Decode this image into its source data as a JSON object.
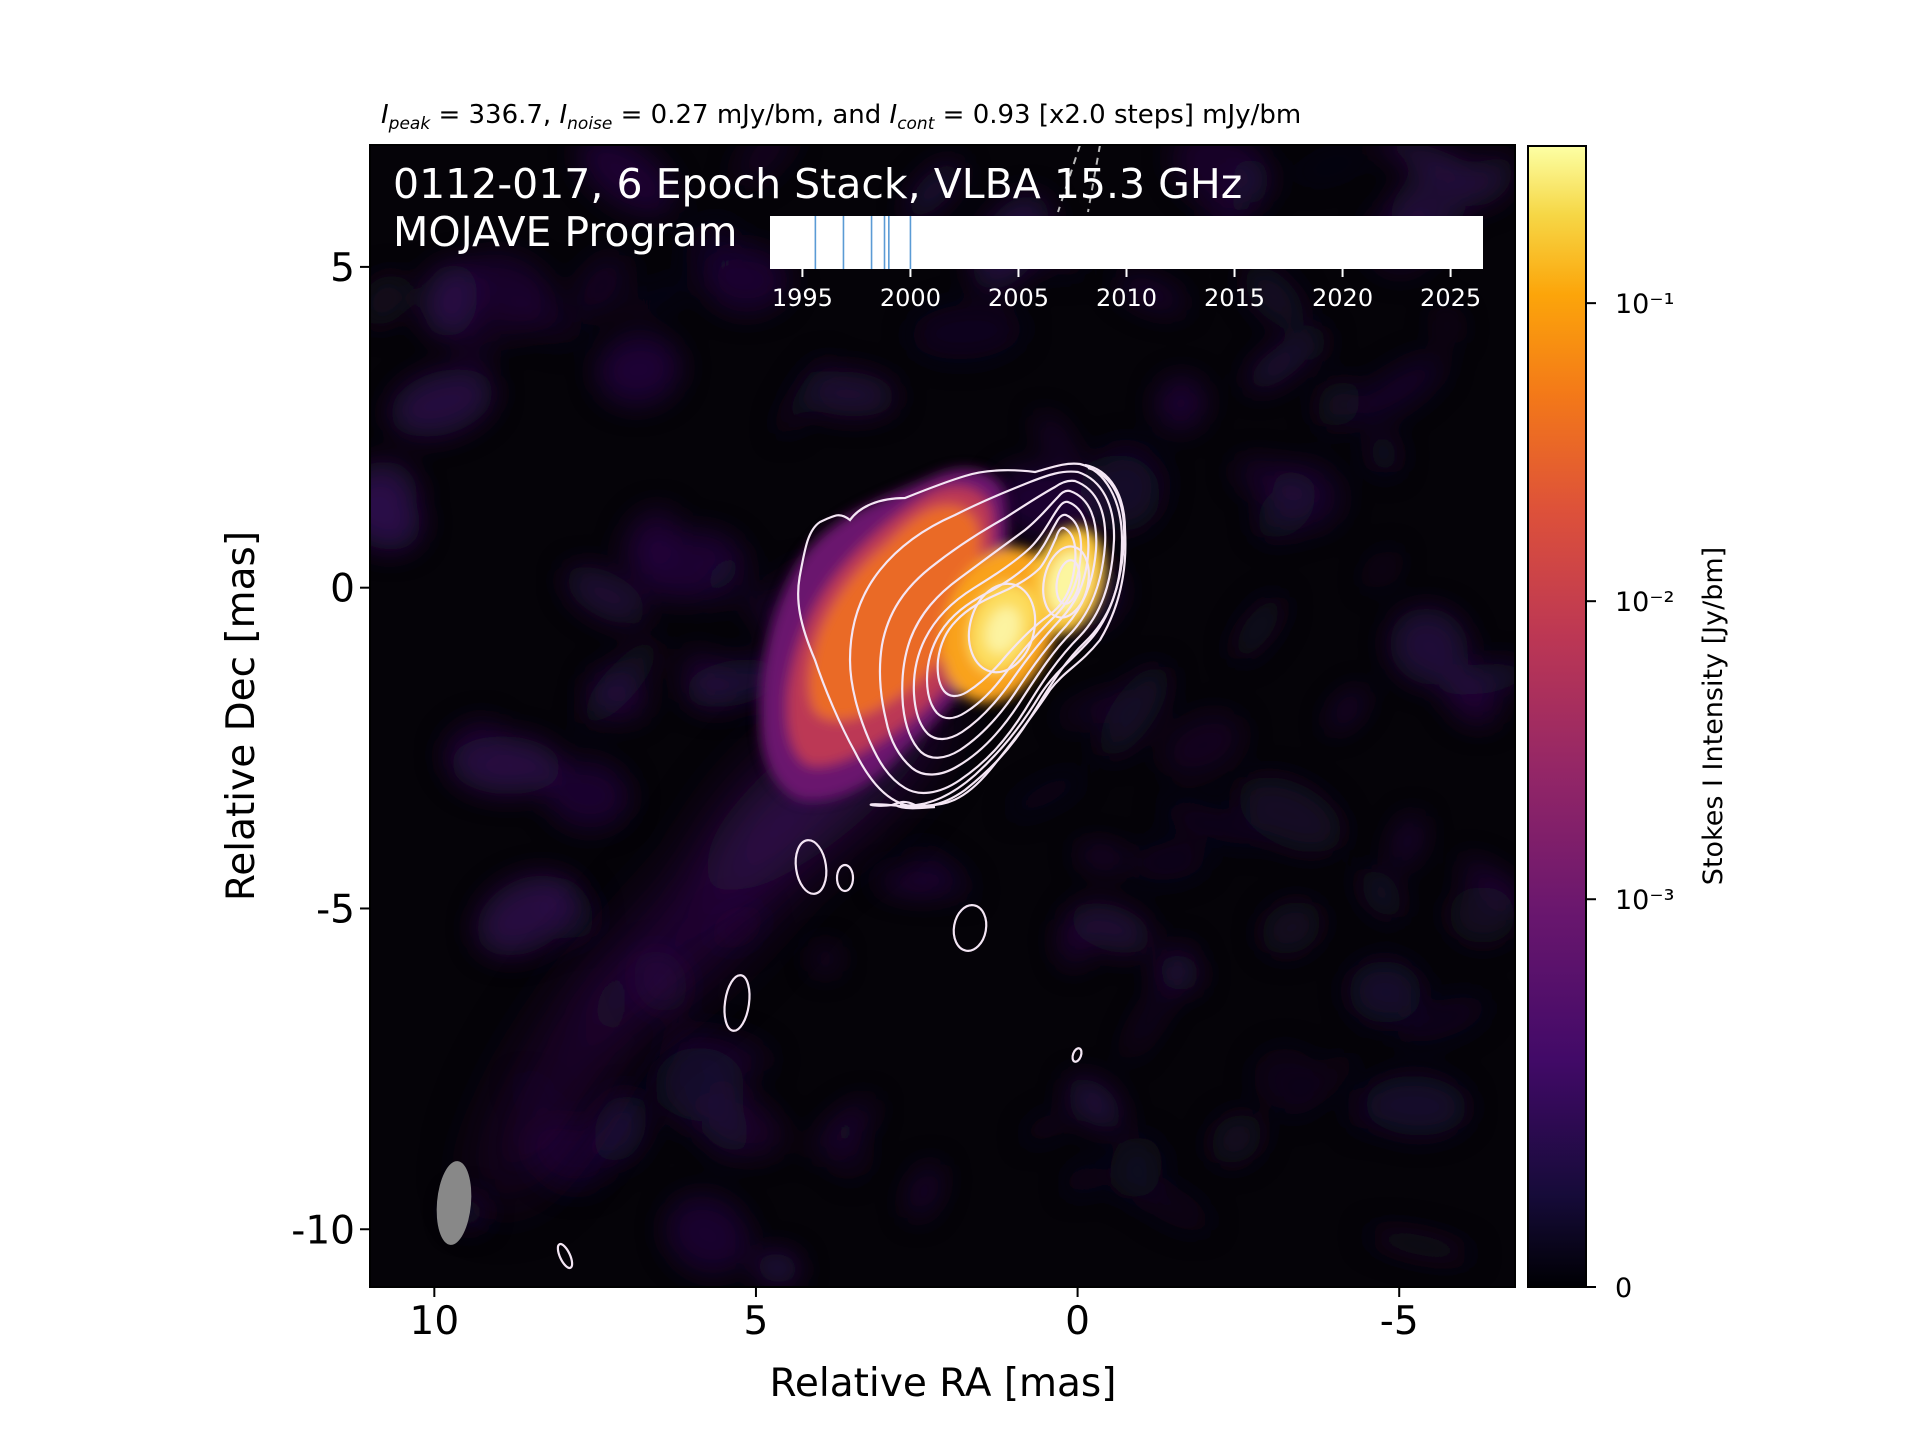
{
  "header": {
    "peak_label": "I",
    "peak_sub": "peak",
    "peak_value": " = 336.7, ",
    "noise_label": "I",
    "noise_sub": "noise",
    "noise_value": " = 0.27 mJy/bm, and ",
    "cont_label": "I",
    "cont_sub": "cont",
    "cont_value": " = 0.93 [x2.0 steps] mJy/bm"
  },
  "chart_data": {
    "type": "heatmap",
    "title_line1": "0112-017, 6 Epoch Stack, VLBA 15.3 GHz",
    "title_line2": "MOJAVE Program",
    "xlabel": "Relative RA [mas]",
    "ylabel": "Relative Dec [mas]",
    "xlim": [
      11.0,
      -6.8
    ],
    "ylim": [
      -10.9,
      6.9
    ],
    "x_ticks": [
      10,
      5,
      0,
      -5
    ],
    "y_ticks": [
      5,
      0,
      -5,
      -10
    ],
    "colorbar": {
      "label": "Stokes I Intensity [Jy/bm]",
      "scale": "symlog",
      "ticks": [
        {
          "value": 0,
          "label": "0"
        },
        {
          "value": 0.001,
          "label": "10⁻³"
        },
        {
          "value": 0.01,
          "label": "10⁻²"
        },
        {
          "value": 0.1,
          "label": "10⁻¹"
        }
      ],
      "colormap": "inferno"
    },
    "components": [
      {
        "x": 0.1,
        "y": 0.0,
        "peak_jy_per_bm": 0.3367
      },
      {
        "x": 1.2,
        "y": -0.8,
        "peak_jy_per_bm": 0.2
      }
    ],
    "beam": {
      "x": 9.6,
      "y": -9.6,
      "major_mas": 1.3,
      "minor_mas": 0.5,
      "pa_deg": -5,
      "color": "#888888"
    },
    "contour_color": "#f4e6f4",
    "epoch_inset": {
      "xlim": [
        1993.5,
        2026.5
      ],
      "ticks": [
        1995,
        2000,
        2005,
        2010,
        2015,
        2020,
        2025
      ],
      "epochs": [
        1995.6,
        1996.9,
        1998.2,
        1998.8,
        1999.0,
        2000.0
      ],
      "epoch_color": "#5b9bd5"
    }
  }
}
